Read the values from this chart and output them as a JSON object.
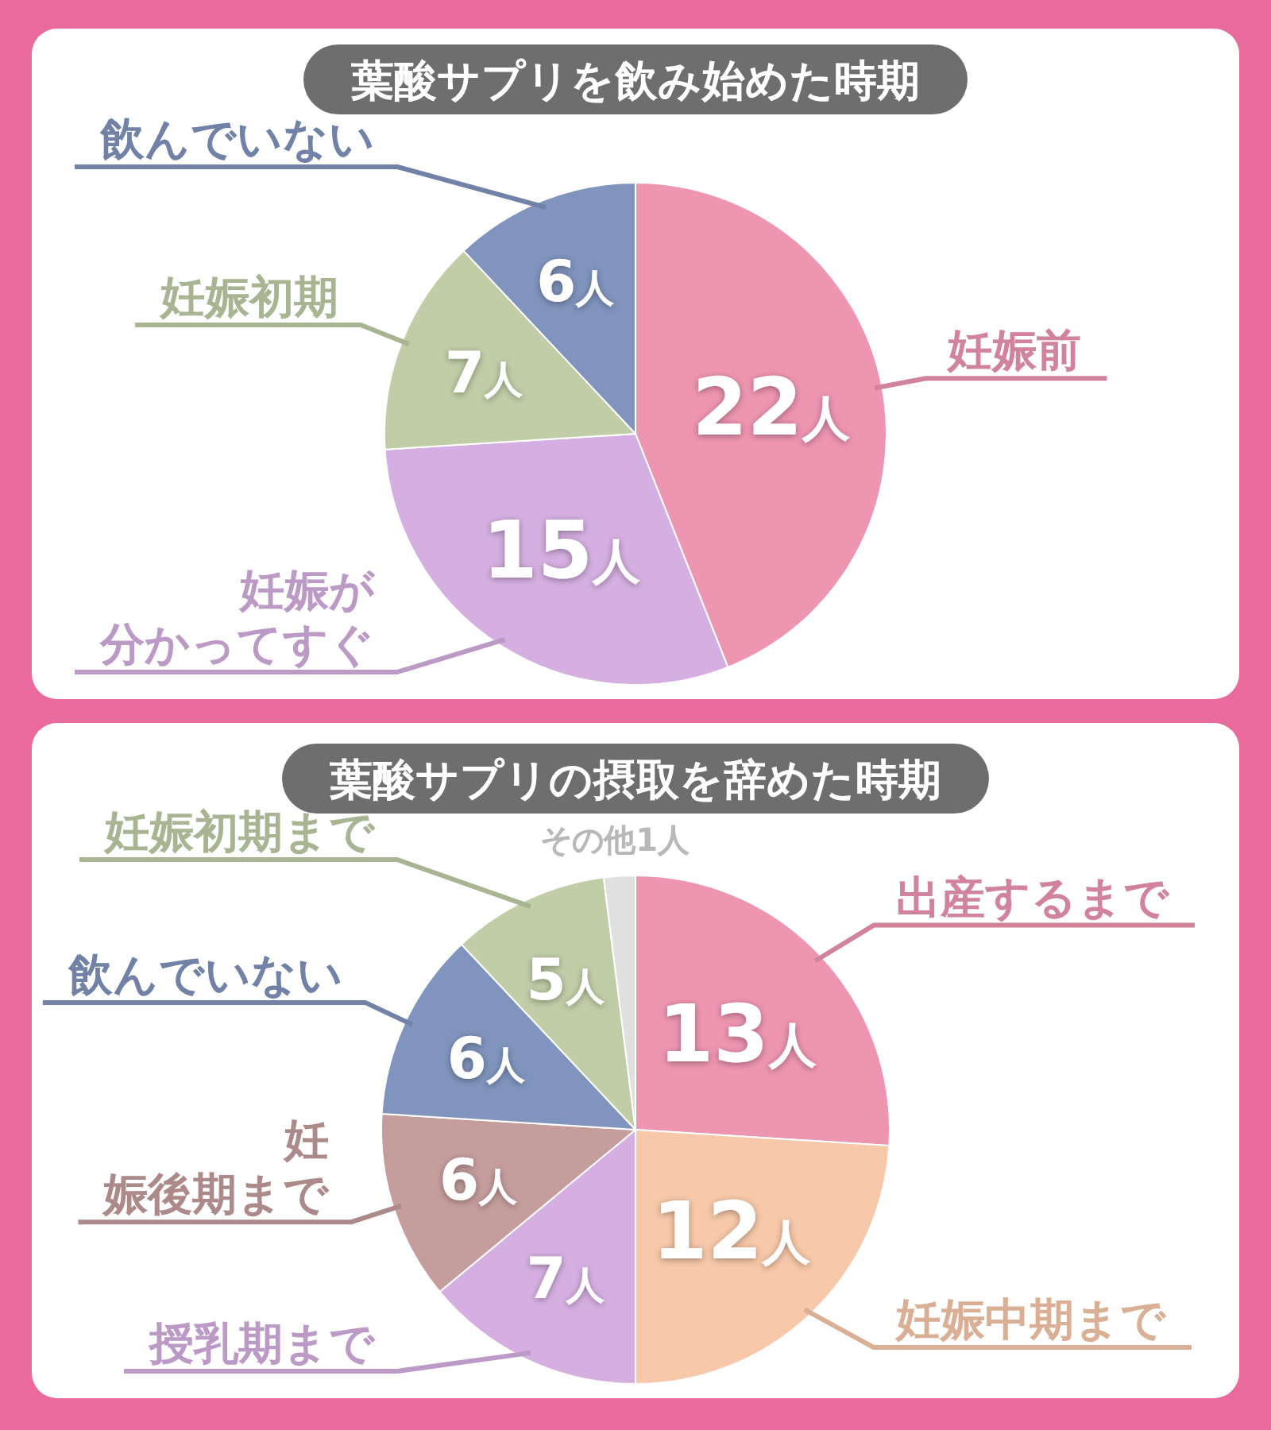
{
  "chart_data": [
    {
      "type": "pie",
      "title": "葉酸サプリを飲み始めた時期",
      "categories": [
        "妊娠前",
        "妊娠が分かってすぐ",
        "妊娠初期",
        "飲んでいない"
      ],
      "values": [
        22,
        15,
        7,
        6
      ],
      "colors": [
        "#ee95b1",
        "#d5afe1",
        "#c0cda7",
        "#8094bd"
      ],
      "value_labels": [
        "22人",
        "15人",
        "7人",
        "6人"
      ]
    },
    {
      "type": "pie",
      "title": "葉酸サプリの摂取を辞めた時期",
      "categories": [
        "出産するまで",
        "妊娠中期まで",
        "授乳期まで",
        "妊娠後期まで",
        "飲んでいない",
        "妊娠初期まで",
        "その他"
      ],
      "values": [
        13,
        12,
        7,
        6,
        6,
        5,
        1
      ],
      "colors": [
        "#ee95b1",
        "#f7c8a9",
        "#d5afe1",
        "#c59d9d",
        "#8094bd",
        "#c0cda7",
        "#e0e0e0"
      ],
      "value_labels": [
        "13人",
        "12人",
        "7人",
        "6人",
        "6人",
        "5人",
        "1人"
      ]
    }
  ]
}
